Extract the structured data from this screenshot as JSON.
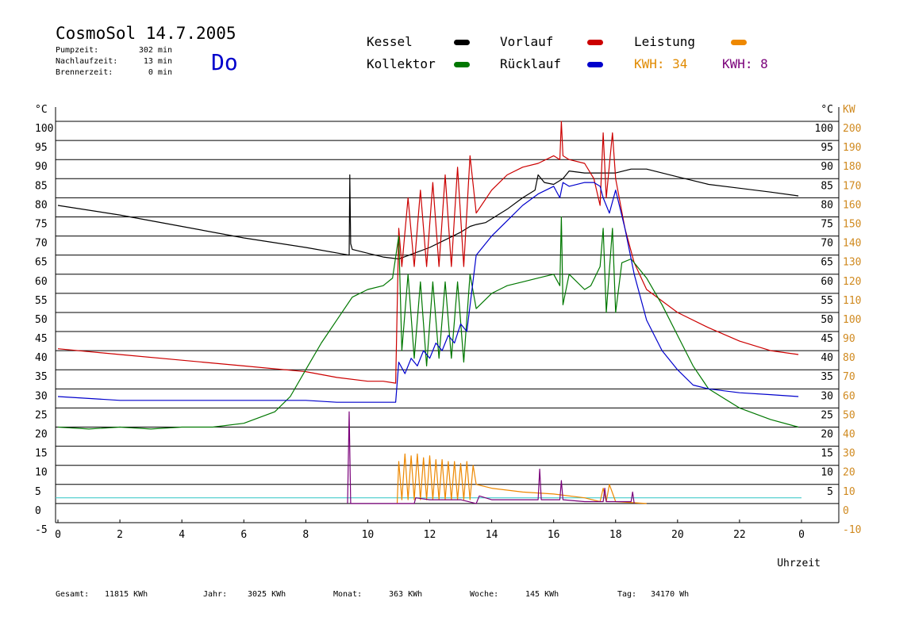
{
  "header": {
    "title": "CosmoSol 14.7.2005",
    "day": "Do",
    "stats": [
      {
        "label": "Pumpzeit:",
        "value": "302 min"
      },
      {
        "label": "Nachlaufzeit:",
        "value": "13 min"
      },
      {
        "label": "Brennerzeit:",
        "value": "0 min"
      }
    ]
  },
  "legend": {
    "kessel": {
      "label": "Kessel",
      "color": "#000000"
    },
    "vorlauf": {
      "label": "Vorlauf",
      "color": "#cc0000"
    },
    "leistung": {
      "label": "Leistung",
      "color": "#ee8800"
    },
    "kollektor": {
      "label": "Kollektor",
      "color": "#007700"
    },
    "ruecklauf": {
      "label": "Rücklauf",
      "color": "#0000cc"
    },
    "kwh1": {
      "label": "KWH: 34",
      "color": "#e08a00"
    },
    "kwh2": {
      "label": "KWH: 8",
      "color": "#7a007a"
    }
  },
  "footer": [
    {
      "label": "Gesamt:",
      "value": "11815 KWh"
    },
    {
      "label": "Jahr:",
      "value": "3025 KWh"
    },
    {
      "label": "Monat:",
      "value": "363 KWh"
    },
    {
      "label": "Woche:",
      "value": "145 KWh"
    },
    {
      "label": "Tag:",
      "value": "34170 Wh"
    }
  ],
  "chart_data": {
    "type": "line",
    "xlabel": "Uhrzeit",
    "ylabel_left": "°C",
    "ylabel_right_unit": "°C",
    "ylabel_right_kw": "KW",
    "xlim": [
      0,
      24
    ],
    "x_ticks": [
      "0",
      "2",
      "4",
      "6",
      "8",
      "10",
      "12",
      "14",
      "16",
      "18",
      "20",
      "22",
      "0"
    ],
    "ylim_left": [
      -5,
      100
    ],
    "y_ticks_left": [
      "-5",
      "0",
      "5",
      "10",
      "15",
      "20",
      "25",
      "30",
      "35",
      "40",
      "45",
      "50",
      "55",
      "60",
      "65",
      "70",
      "75",
      "80",
      "85",
      "90",
      "95",
      "100"
    ],
    "y_ticks_right_c": [
      "5",
      "10",
      "15",
      "20",
      "25",
      "30",
      "35",
      "40",
      "45",
      "50",
      "55",
      "60",
      "65",
      "70",
      "75",
      "80",
      "85",
      "90",
      "95",
      "100"
    ],
    "y_ticks_right_kw": [
      "-10",
      "0",
      "10",
      "20",
      "30",
      "40",
      "50",
      "60",
      "70",
      "80",
      "90",
      "100",
      "110",
      "120",
      "130",
      "140",
      "150",
      "160",
      "170",
      "180",
      "190",
      "200"
    ],
    "grid": true,
    "baseline": {
      "y": 1.5,
      "color": "#44cccc"
    },
    "series": [
      {
        "name": "Kessel",
        "color": "#000000",
        "x": [
          0,
          2,
          4,
          6,
          8,
          9.4,
          9.42,
          9.45,
          9.5,
          10,
          10.5,
          11,
          11.5,
          12,
          12.5,
          13,
          13.3,
          13.5,
          13.8,
          14.5,
          15,
          15.4,
          15.5,
          15.7,
          16,
          16.3,
          16.5,
          17,
          17.5,
          18,
          18.5,
          19,
          20,
          21,
          22,
          23,
          23.9
        ],
        "y": [
          78,
          75.5,
          72.5,
          69.5,
          67,
          65,
          86,
          68,
          66.5,
          65.5,
          64.5,
          64,
          65.5,
          67,
          69,
          71,
          72.5,
          73,
          73.5,
          77,
          80,
          82,
          86,
          84,
          83.5,
          85,
          87,
          86.5,
          86.5,
          86.5,
          87.5,
          87.5,
          85.5,
          83.5,
          82.5,
          81.5,
          80.5
        ]
      },
      {
        "name": "Vorlauf",
        "color": "#cc0000",
        "x": [
          0,
          2,
          4,
          6,
          8,
          9,
          10,
          10.5,
          10.9,
          11,
          11.1,
          11.3,
          11.5,
          11.7,
          11.9,
          12.1,
          12.3,
          12.5,
          12.7,
          12.9,
          13.1,
          13.3,
          13.5,
          14,
          14.5,
          15,
          15.5,
          16,
          16.2,
          16.25,
          16.3,
          16.5,
          17,
          17.3,
          17.5,
          17.6,
          17.7,
          17.9,
          18,
          18.3,
          18.6,
          19,
          19.5,
          20,
          21,
          22,
          23,
          23.9
        ],
        "y": [
          40.5,
          39,
          37.5,
          36,
          34.5,
          33,
          32,
          32,
          31.5,
          72,
          62,
          80,
          62,
          82,
          62,
          84,
          62,
          86,
          62,
          88,
          62,
          91,
          76,
          82,
          86,
          88,
          89,
          91,
          90,
          100,
          91,
          90,
          89,
          85,
          78,
          97,
          80,
          97,
          85,
          72,
          63,
          56,
          53,
          50,
          46,
          42.5,
          40,
          39
        ]
      },
      {
        "name": "Kollektor",
        "color": "#007700",
        "x": [
          0,
          1,
          2,
          3,
          4,
          5,
          6,
          7,
          7.5,
          8,
          8.5,
          9,
          9.5,
          10,
          10.5,
          10.8,
          11,
          11.1,
          11.3,
          11.5,
          11.7,
          11.9,
          12.1,
          12.3,
          12.5,
          12.7,
          12.9,
          13.1,
          13.3,
          13.5,
          14,
          14.5,
          15,
          15.5,
          16,
          16.2,
          16.25,
          16.3,
          16.5,
          17,
          17.2,
          17.5,
          17.6,
          17.7,
          17.9,
          18,
          18.2,
          18.5,
          19,
          19.5,
          20,
          20.5,
          21,
          22,
          23,
          23.9
        ],
        "y": [
          20,
          19.5,
          20,
          19.5,
          20,
          20,
          21,
          24,
          28,
          35,
          42,
          48,
          54,
          56,
          57,
          59,
          70,
          40,
          60,
          38,
          58,
          36,
          58,
          38,
          58,
          38,
          58,
          37,
          60,
          51,
          55,
          57,
          58,
          59,
          60,
          57,
          75,
          52,
          60,
          56,
          57,
          62,
          72,
          50,
          72,
          50,
          63,
          64,
          59,
          52,
          44,
          36,
          30,
          25,
          22,
          20
        ]
      },
      {
        "name": "Rücklauf",
        "color": "#0000cc",
        "x": [
          0,
          2,
          4,
          6,
          8,
          9,
          10,
          10.9,
          11,
          11.2,
          11.4,
          11.6,
          11.8,
          12,
          12.2,
          12.4,
          12.6,
          12.8,
          13,
          13.2,
          13.5,
          14,
          14.5,
          15,
          15.5,
          16,
          16.2,
          16.3,
          16.5,
          17,
          17.3,
          17.5,
          17.6,
          17.8,
          18,
          18.3,
          18.6,
          19,
          19.5,
          20,
          20.5,
          21,
          22,
          23,
          23.9
        ],
        "y": [
          28,
          27,
          27,
          27,
          27,
          26.5,
          26.5,
          26.5,
          37,
          34,
          38,
          36,
          40,
          38,
          42,
          40,
          44,
          42,
          47,
          45,
          65,
          70,
          74,
          78,
          81,
          83,
          80,
          84,
          83,
          84,
          84,
          83,
          80,
          76,
          82,
          72,
          60,
          48,
          40,
          35,
          31,
          30,
          29,
          28.5,
          28
        ]
      },
      {
        "name": "Leistung",
        "color": "#ee8800",
        "axis": "kw",
        "x": [
          10.95,
          11,
          11.1,
          11.2,
          11.3,
          11.4,
          11.5,
          11.6,
          11.7,
          11.8,
          11.9,
          12,
          12.1,
          12.2,
          12.3,
          12.4,
          12.5,
          12.6,
          12.7,
          12.8,
          12.9,
          13,
          13.1,
          13.2,
          13.3,
          13.4,
          13.5,
          14,
          15,
          16,
          17,
          17.5,
          17.6,
          17.7,
          17.8,
          18,
          19
        ],
        "y": [
          0,
          22,
          2,
          26,
          2,
          25,
          2,
          26,
          2,
          24,
          2,
          25,
          2,
          23,
          2,
          23,
          2,
          22,
          2,
          22,
          2,
          21,
          2,
          22,
          2,
          20,
          10,
          8,
          6,
          5,
          3,
          1,
          8,
          1,
          10,
          1,
          0
        ]
      },
      {
        "name": "KWH2",
        "color": "#7a007a",
        "axis": "kw",
        "x": [
          9.35,
          9.4,
          9.45,
          11,
          11.5,
          11.55,
          12,
          13,
          13.5,
          13.6,
          14,
          15,
          15.5,
          15.55,
          15.6,
          16,
          16.2,
          16.25,
          16.3,
          17,
          17.6,
          17.65,
          17.7,
          18,
          18.5,
          18.55,
          18.6
        ],
        "y": [
          0,
          48,
          0,
          0,
          0,
          3,
          2,
          2,
          0,
          4,
          2,
          2,
          2,
          18,
          2,
          2,
          2,
          12,
          2,
          1,
          1,
          8,
          1,
          1,
          1,
          6,
          0
        ]
      }
    ]
  }
}
